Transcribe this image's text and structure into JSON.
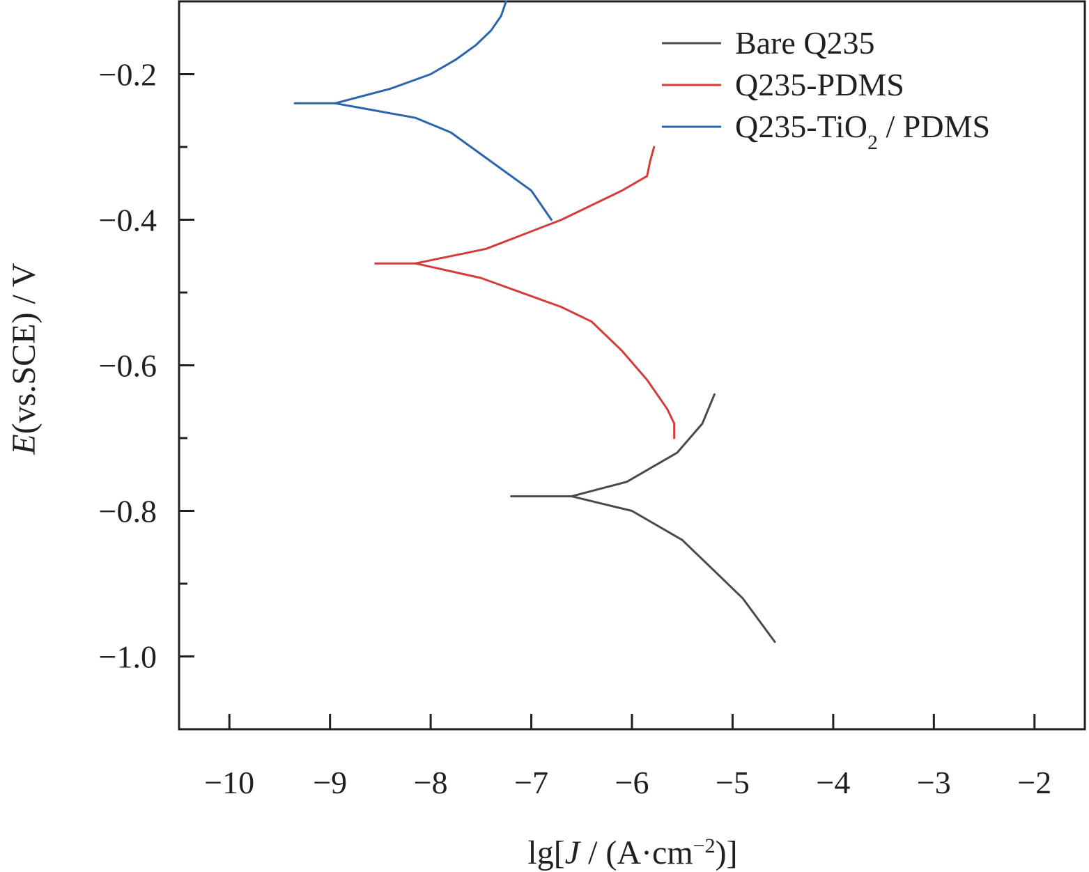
{
  "chart_data": {
    "type": "line",
    "xlabel": {
      "prefix": "lg[",
      "italic": "J",
      "middle": " / (A·cm",
      "sup": "−2",
      "suffix": ")]"
    },
    "ylabel": {
      "italic": "E",
      "rest": "(vs.SCE) / V"
    },
    "xlim": [
      -10.5,
      -1.5
    ],
    "ylim": [
      -1.1,
      -0.1
    ],
    "x_ticks": [
      -10,
      -9,
      -8,
      -7,
      -6,
      -5,
      -4,
      -3,
      -2
    ],
    "x_tick_labels": [
      "−10",
      "−9",
      "−8",
      "−7",
      "−6",
      "−5",
      "−4",
      "−3",
      "−2"
    ],
    "y_ticks_major": [
      -1.0,
      -0.8,
      -0.6,
      -0.4,
      -0.2
    ],
    "y_tick_labels": [
      "−1.0",
      "−0.8",
      "−0.6",
      "−0.4",
      "−0.2"
    ],
    "y_ticks_minor": [
      -0.9,
      -0.7,
      -0.5,
      -0.3
    ],
    "grid": false,
    "legend_position": "top-right",
    "series": [
      {
        "name": "Bare Q235",
        "color": "#4a4a4d",
        "points": [
          [
            -7.2,
            -0.78
          ],
          [
            -6.6,
            -0.78
          ],
          [
            -6.05,
            -0.76
          ],
          [
            -5.8,
            -0.74
          ],
          [
            -5.55,
            -0.72
          ],
          [
            -5.3,
            -0.68
          ],
          [
            -5.18,
            -0.64
          ]
        ],
        "points_2": [
          [
            -6.6,
            -0.78
          ],
          [
            -6.0,
            -0.8
          ],
          [
            -5.5,
            -0.84
          ],
          [
            -5.2,
            -0.88
          ],
          [
            -4.9,
            -0.92
          ],
          [
            -4.58,
            -0.98
          ]
        ]
      },
      {
        "name": "Q235-PDMS",
        "color": "#d63a3a",
        "points": [
          [
            -8.55,
            -0.46
          ],
          [
            -8.15,
            -0.46
          ],
          [
            -7.45,
            -0.44
          ],
          [
            -6.7,
            -0.4
          ],
          [
            -6.1,
            -0.36
          ],
          [
            -5.85,
            -0.34
          ],
          [
            -5.82,
            -0.32
          ],
          [
            -5.78,
            -0.3
          ]
        ],
        "points_2": [
          [
            -8.15,
            -0.46
          ],
          [
            -7.5,
            -0.48
          ],
          [
            -6.7,
            -0.52
          ],
          [
            -6.4,
            -0.54
          ],
          [
            -6.1,
            -0.58
          ],
          [
            -5.85,
            -0.62
          ],
          [
            -5.65,
            -0.66
          ],
          [
            -5.58,
            -0.68
          ],
          [
            -5.58,
            -0.7
          ]
        ]
      },
      {
        "name_main": "Q235-TiO",
        "name_sub": "2",
        "name_tail": " / PDMS",
        "color": "#2b64ad",
        "points": [
          [
            -9.35,
            -0.24
          ],
          [
            -8.95,
            -0.24
          ],
          [
            -8.4,
            -0.22
          ],
          [
            -8.0,
            -0.2
          ],
          [
            -7.75,
            -0.18
          ],
          [
            -7.55,
            -0.16
          ],
          [
            -7.4,
            -0.14
          ],
          [
            -7.3,
            -0.12
          ],
          [
            -7.25,
            -0.1
          ]
        ],
        "points_2": [
          [
            -8.95,
            -0.24
          ],
          [
            -8.15,
            -0.26
          ],
          [
            -7.8,
            -0.28
          ],
          [
            -7.4,
            -0.32
          ],
          [
            -7.0,
            -0.36
          ],
          [
            -6.8,
            -0.4
          ]
        ]
      }
    ]
  }
}
